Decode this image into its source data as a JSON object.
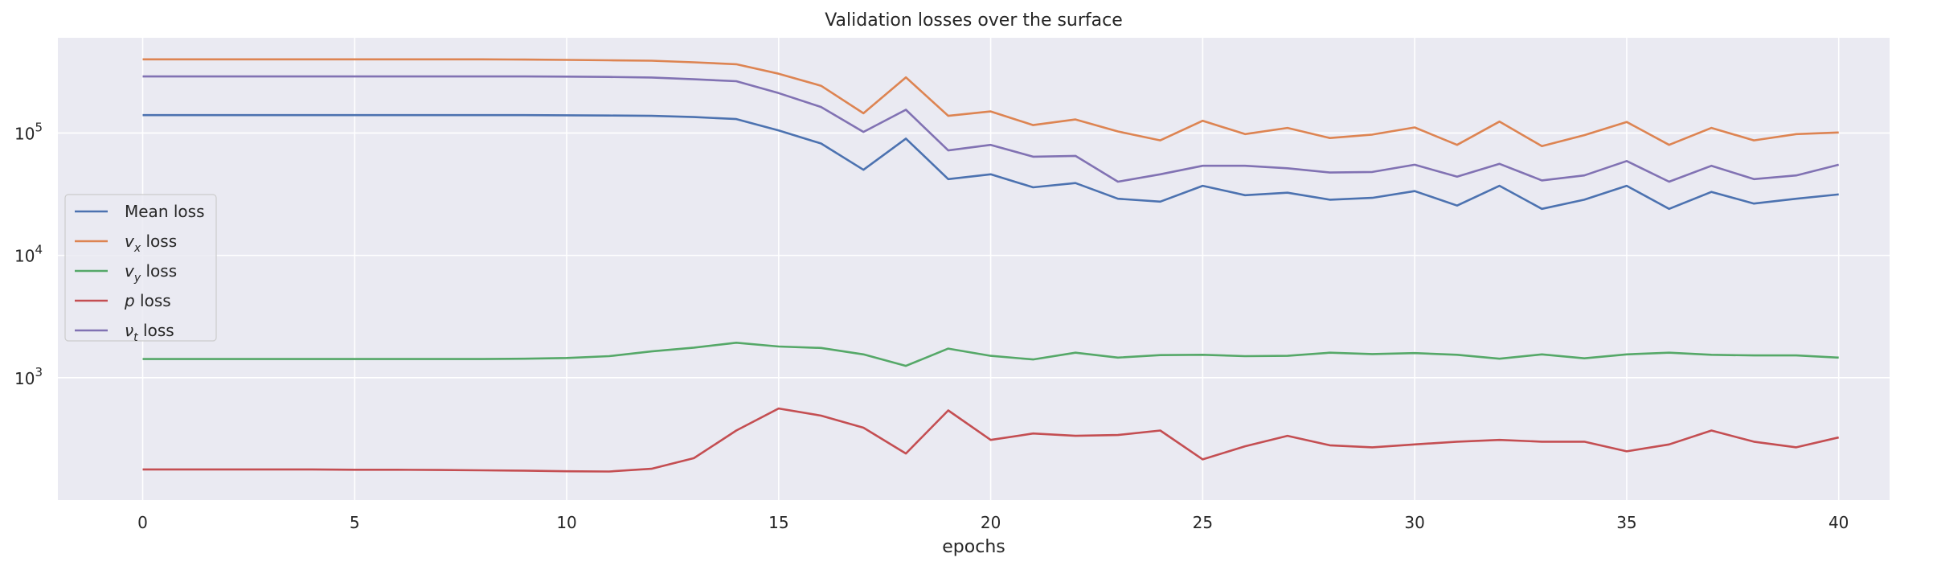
{
  "chart_data": {
    "type": "line",
    "title": "Validation losses over the surface",
    "xlabel": "epochs",
    "ylabel": "",
    "xlim": [
      -2,
      41.2
    ],
    "ylim": [
      100,
      600000
    ],
    "yscale": "log",
    "grid": true,
    "legend_position": "center-left",
    "x_ticks": [
      0,
      5,
      10,
      15,
      20,
      25,
      30,
      35,
      40
    ],
    "y_ticks": [
      {
        "value": 1000,
        "base": "10",
        "exp": "3"
      },
      {
        "value": 10000,
        "base": "10",
        "exp": "4"
      },
      {
        "value": 100000,
        "base": "10",
        "exp": "5"
      }
    ],
    "x": [
      0,
      1,
      2,
      3,
      4,
      5,
      6,
      7,
      8,
      9,
      10,
      11,
      12,
      13,
      14,
      15,
      16,
      17,
      18,
      19,
      20,
      21,
      22,
      23,
      24,
      25,
      26,
      27,
      28,
      29,
      30,
      31,
      32,
      33,
      34,
      35,
      36,
      37,
      38,
      39,
      40
    ],
    "series": [
      {
        "name": "Mean loss",
        "label_parts": {
          "plain": "Mean loss"
        },
        "color": "#4c72b0",
        "values": [
          140000,
          140000,
          140000,
          140000,
          140000,
          140000,
          140000,
          140000,
          140000,
          140000,
          139500,
          139000,
          138000,
          135000,
          130000,
          105000,
          82000,
          50000,
          90000,
          42000,
          46000,
          36000,
          39000,
          29000,
          27500,
          37000,
          31000,
          32500,
          28500,
          29500,
          33500,
          25500,
          37000,
          24000,
          28500,
          37000,
          24000,
          33000,
          26500,
          29000,
          31500
        ]
      },
      {
        "name": "v_x loss",
        "label_parts": {
          "sym": "v",
          "sub": "x",
          "rest": " loss"
        },
        "color": "#dd8452",
        "values": [
          400000,
          400000,
          400000,
          400000,
          400000,
          400000,
          400000,
          400000,
          400000,
          398000,
          396000,
          393000,
          390000,
          378000,
          365000,
          305000,
          243000,
          145000,
          285000,
          138000,
          150000,
          116000,
          129000,
          103000,
          87000,
          126000,
          98000,
          110000,
          91000,
          97000,
          111000,
          80000,
          124000,
          78000,
          96000,
          123000,
          80000,
          110000,
          87000,
          98000,
          101000
        ]
      },
      {
        "name": "v_y loss",
        "label_parts": {
          "sym": "v",
          "sub": "y",
          "rest": " loss"
        },
        "color": "#55a868",
        "values": [
          1420,
          1420,
          1420,
          1420,
          1420,
          1420,
          1420,
          1420,
          1420,
          1430,
          1450,
          1500,
          1640,
          1760,
          1930,
          1800,
          1750,
          1550,
          1250,
          1730,
          1510,
          1410,
          1600,
          1460,
          1530,
          1540,
          1500,
          1510,
          1600,
          1560,
          1590,
          1540,
          1430,
          1550,
          1440,
          1550,
          1600,
          1540,
          1520,
          1520,
          1460
        ]
      },
      {
        "name": "p loss",
        "label_parts": {
          "sym": "p",
          "rest": " loss"
        },
        "color": "#c44e52",
        "values": [
          178,
          178,
          178,
          178,
          178,
          177,
          177,
          176,
          175,
          174,
          172,
          171,
          180,
          220,
          370,
          560,
          490,
          390,
          240,
          540,
          310,
          350,
          335,
          340,
          370,
          215,
          275,
          335,
          280,
          270,
          285,
          300,
          310,
          300,
          300,
          250,
          285,
          370,
          300,
          270,
          325
        ]
      },
      {
        "name": "nu_t loss",
        "label_parts": {
          "sym": "ν",
          "sub": "t",
          "rest": " loss"
        },
        "color": "#8172b3",
        "values": [
          290000,
          290000,
          290000,
          290000,
          290000,
          290000,
          290000,
          290000,
          290000,
          290000,
          289000,
          287000,
          284000,
          275000,
          265000,
          212000,
          163000,
          102000,
          155000,
          72000,
          80000,
          64000,
          65000,
          40000,
          46000,
          54000,
          54000,
          51500,
          47500,
          48000,
          55000,
          44000,
          56000,
          41000,
          45000,
          59000,
          40000,
          54000,
          42000,
          45000,
          55000
        ]
      }
    ]
  }
}
